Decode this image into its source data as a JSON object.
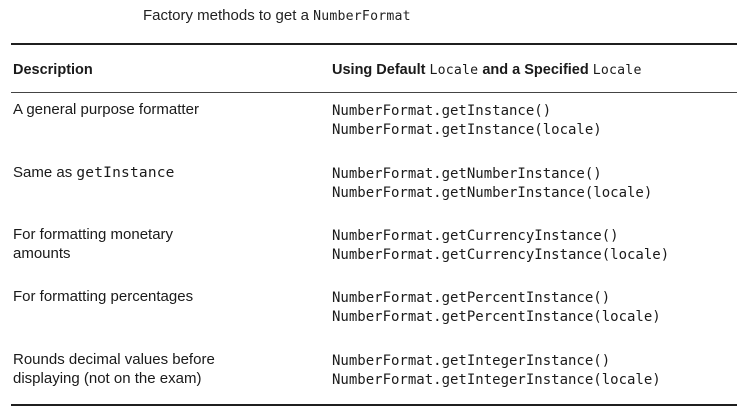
{
  "caption": {
    "text": "Factory methods to get a ",
    "code": "NumberFormat"
  },
  "table": {
    "header": {
      "description": "Description",
      "usage_prefix": "Using Default ",
      "usage_code1": "Locale",
      "usage_middle": " and a Specified ",
      "usage_code2": "Locale"
    },
    "rows": [
      {
        "description": "A general purpose formatter",
        "description_code": "",
        "line1": "NumberFormat.getInstance()",
        "line2": "NumberFormat.getInstance(locale)"
      },
      {
        "description": "Same as ",
        "description_code": "getInstance",
        "line1": "NumberFormat.getNumberInstance()",
        "line2": "NumberFormat.getNumberInstance(locale)"
      },
      {
        "description": "For formatting monetary amounts",
        "description_code": "",
        "line1": "NumberFormat.getCurrencyInstance()",
        "line2": "NumberFormat.getCurrencyInstance(locale)"
      },
      {
        "description": "For formatting percentages",
        "description_code": "",
        "line1": "NumberFormat.getPercentInstance()",
        "line2": "NumberFormat.getPercentInstance(locale)"
      },
      {
        "description": "Rounds decimal values before displaying (not on the exam)",
        "description_code": "",
        "line1": "NumberFormat.getIntegerInstance()",
        "line2": "NumberFormat.getIntegerInstance(locale)"
      }
    ]
  }
}
